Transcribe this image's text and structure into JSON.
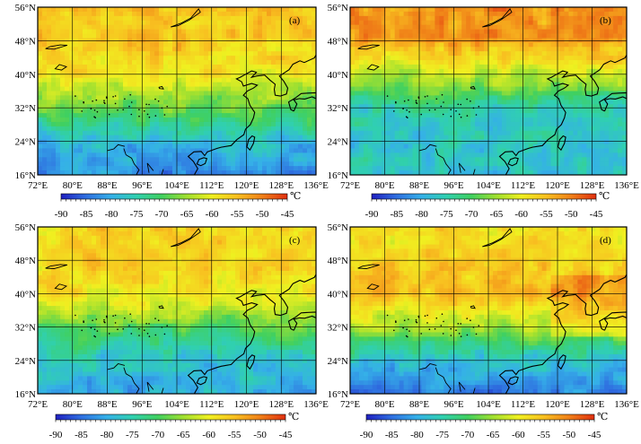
{
  "panels": [
    {
      "label": "(a)"
    },
    {
      "label": "(b)"
    },
    {
      "label": "(c)"
    },
    {
      "label": "(d)"
    }
  ],
  "axes": {
    "x_ticks": [
      "72°E",
      "80°E",
      "88°E",
      "96°E",
      "104°E",
      "112°E",
      "120°E",
      "128°E",
      "136°E"
    ],
    "y_ticks": [
      "56°N",
      "48°N",
      "40°N",
      "32°N",
      "24°N",
      "16°N"
    ],
    "lon_range": [
      72,
      136
    ],
    "lat_range": [
      16,
      56
    ]
  },
  "colorbar": {
    "ticks": [
      "-90",
      "-85",
      "-80",
      "-75",
      "-70",
      "-65",
      "-60",
      "-55",
      "-50",
      "-45"
    ],
    "range": [
      -90,
      -45
    ],
    "unit": "℃",
    "colors": [
      "#2020c0",
      "#2f6fe0",
      "#35b0e8",
      "#30d0b0",
      "#40d060",
      "#a0e030",
      "#f0f020",
      "#f8c020",
      "#f08018",
      "#e03010"
    ]
  },
  "chart_data": {
    "type": "heatmap",
    "title": "",
    "xlabel": "",
    "ylabel": "",
    "x_extent": [
      72,
      136
    ],
    "y_extent": [
      16,
      56
    ],
    "value_range": [
      -90,
      -45
    ],
    "value_unit": "℃",
    "latitude_profiles_approx": [
      {
        "panel": "(a)",
        "lat": [
          16,
          24,
          32,
          40,
          48,
          56
        ],
        "value": [
          -83,
          -78,
          -68,
          -59,
          -56,
          -55
        ]
      },
      {
        "panel": "(b)",
        "lat": [
          16,
          24,
          32,
          40,
          48,
          56
        ],
        "value": [
          -77,
          -77,
          -75,
          -63,
          -52,
          -52
        ]
      },
      {
        "panel": "(c)",
        "lat": [
          16,
          24,
          32,
          40,
          48,
          56
        ],
        "value": [
          -80,
          -77,
          -69,
          -59,
          -57,
          -57
        ]
      },
      {
        "panel": "(d)",
        "lat": [
          16,
          24,
          32,
          40,
          48,
          56
        ],
        "value": [
          -84,
          -78,
          -64,
          -55,
          -57,
          -59
        ]
      }
    ]
  }
}
